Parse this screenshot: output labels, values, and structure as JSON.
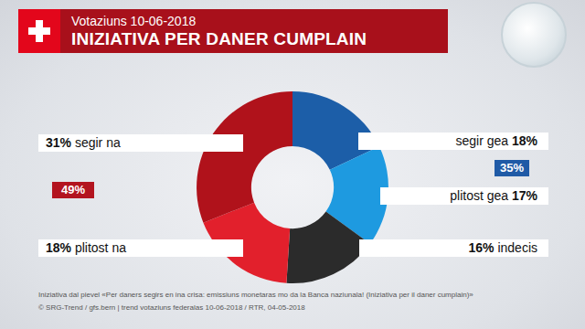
{
  "chart_data": {
    "type": "donut",
    "subtitle": "Votaziuns 10-06-2018",
    "title": "INIZIATIVA PER DANER CUMPLAIN",
    "categories": [
      "segir gea",
      "plitost gea",
      "indecis",
      "plitost na",
      "segir na"
    ],
    "values": [
      18,
      17,
      16,
      18,
      31
    ],
    "value_labels": [
      "18%",
      "17%",
      "16%",
      "18%",
      "31%"
    ],
    "colors": [
      "#1c5ea8",
      "#1e9ae0",
      "#2b2b2b",
      "#e2202c",
      "#b0121b"
    ],
    "data_labels": true,
    "annotations": [
      {
        "text": "35%",
        "color": "#1f5aa6"
      },
      {
        "text": "49%",
        "color": "#b3141f"
      }
    ],
    "notes": [
      "Iniziativa dal pievel «Per daners segirs en ina crisa: emissiuns monetaras mo da la Banca naziunala! (Iniziativa per il daner cumplain)»",
      "© SRG-Trend / gfs.bern  |  trend votaziuns federalas 10-06-2018 / RTR, 04-05-2018"
    ]
  }
}
